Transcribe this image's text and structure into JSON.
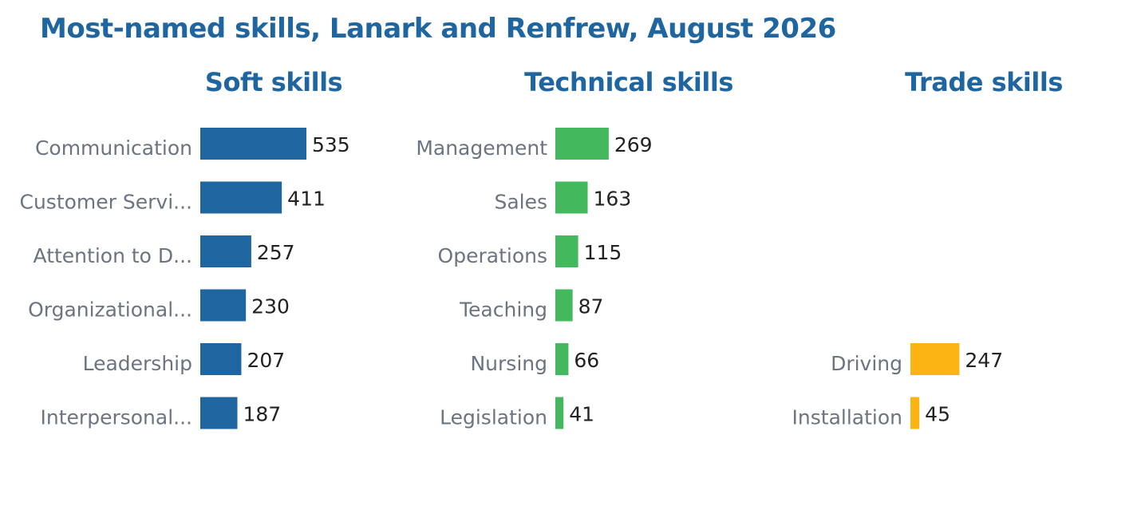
{
  "title": "Most-named skills, Lanark and Renfrew, August 2026",
  "chart_data": [
    {
      "type": "bar",
      "orientation": "horizontal",
      "title": "Soft skills",
      "categories": [
        "Communication",
        "Customer Servi...",
        "Attention to D...",
        "Organizational...",
        "Leadership",
        "Interpersonal..."
      ],
      "values": [
        535,
        411,
        257,
        230,
        207,
        187
      ],
      "color": "#1f65a0"
    },
    {
      "type": "bar",
      "orientation": "horizontal",
      "title": "Technical skills",
      "categories": [
        "Management",
        "Sales",
        "Operations",
        "Teaching",
        "Nursing",
        "Legislation"
      ],
      "values": [
        269,
        163,
        115,
        87,
        66,
        41
      ],
      "color": "#43b85c"
    },
    {
      "type": "bar",
      "orientation": "horizontal",
      "title": "Trade skills",
      "categories": [
        "",
        "",
        "",
        "",
        "Driving",
        "Installation"
      ],
      "values": [
        null,
        null,
        null,
        null,
        247,
        45
      ],
      "color": "#fbb414"
    }
  ],
  "grid": false,
  "legend": "none"
}
